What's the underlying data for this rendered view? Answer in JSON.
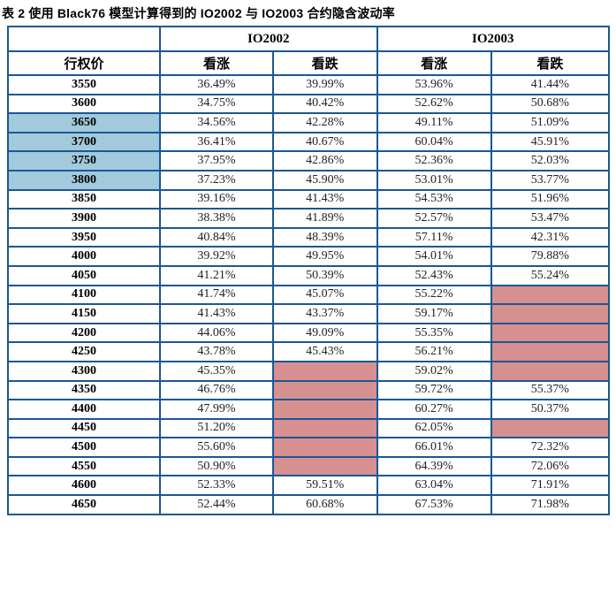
{
  "title": "表 2 使用 Black76 模型计算得到的 IO2002 与 IO2003 合约隐含波动率",
  "colors": {
    "border": "#1a5794",
    "blue_highlight": "#a2cadc",
    "pink_highlight": "#d69090"
  },
  "table": {
    "group_headers": {
      "blank": "",
      "io2002": "IO2002",
      "io2003": "IO2003"
    },
    "column_headers": {
      "strike": "行权价",
      "call02": "看涨",
      "put02": "看跌",
      "call03": "看涨",
      "put03": "看跌"
    },
    "rows": [
      {
        "strike": "3550",
        "strike_highlight": false,
        "values": [
          "36.49%",
          "39.99%",
          "53.96%",
          "41.44%"
        ]
      },
      {
        "strike": "3600",
        "strike_highlight": false,
        "values": [
          "34.75%",
          "40.42%",
          "52.62%",
          "50.68%"
        ]
      },
      {
        "strike": "3650",
        "strike_highlight": true,
        "values": [
          "34.56%",
          "42.28%",
          "49.11%",
          "51.09%"
        ]
      },
      {
        "strike": "3700",
        "strike_highlight": true,
        "values": [
          "36.41%",
          "40.67%",
          "60.04%",
          "45.91%"
        ]
      },
      {
        "strike": "3750",
        "strike_highlight": true,
        "values": [
          "37.95%",
          "42.86%",
          "52.36%",
          "52.03%"
        ]
      },
      {
        "strike": "3800",
        "strike_highlight": true,
        "values": [
          "37.23%",
          "45.90%",
          "53.01%",
          "53.77%"
        ]
      },
      {
        "strike": "3850",
        "strike_highlight": false,
        "values": [
          "39.16%",
          "41.43%",
          "54.53%",
          "51.96%"
        ]
      },
      {
        "strike": "3900",
        "strike_highlight": false,
        "values": [
          "38.38%",
          "41.89%",
          "52.57%",
          "53.47%"
        ]
      },
      {
        "strike": "3950",
        "strike_highlight": false,
        "values": [
          "40.84%",
          "48.39%",
          "57.11%",
          "42.31%"
        ]
      },
      {
        "strike": "4000",
        "strike_highlight": false,
        "values": [
          "39.92%",
          "49.95%",
          "54.01%",
          "79.88%"
        ]
      },
      {
        "strike": "4050",
        "strike_highlight": false,
        "values": [
          "41.21%",
          "50.39%",
          "52.43%",
          "55.24%"
        ]
      },
      {
        "strike": "4100",
        "strike_highlight": false,
        "values": [
          "41.74%",
          "45.07%",
          "55.22%",
          null
        ]
      },
      {
        "strike": "4150",
        "strike_highlight": false,
        "values": [
          "41.43%",
          "43.37%",
          "59.17%",
          null
        ]
      },
      {
        "strike": "4200",
        "strike_highlight": false,
        "values": [
          "44.06%",
          "49.09%",
          "55.35%",
          null
        ]
      },
      {
        "strike": "4250",
        "strike_highlight": false,
        "values": [
          "43.78%",
          "45.43%",
          "56.21%",
          null
        ]
      },
      {
        "strike": "4300",
        "strike_highlight": false,
        "values": [
          "45.35%",
          null,
          "59.02%",
          null
        ]
      },
      {
        "strike": "4350",
        "strike_highlight": false,
        "values": [
          "46.76%",
          null,
          "59.72%",
          "55.37%"
        ]
      },
      {
        "strike": "4400",
        "strike_highlight": false,
        "values": [
          "47.99%",
          null,
          "60.27%",
          "50.37%"
        ]
      },
      {
        "strike": "4450",
        "strike_highlight": false,
        "values": [
          "51.20%",
          null,
          "62.05%",
          null
        ]
      },
      {
        "strike": "4500",
        "strike_highlight": false,
        "values": [
          "55.60%",
          null,
          "66.01%",
          "72.32%"
        ]
      },
      {
        "strike": "4550",
        "strike_highlight": false,
        "values": [
          "50.90%",
          null,
          "64.39%",
          "72.06%"
        ]
      },
      {
        "strike": "4600",
        "strike_highlight": false,
        "values": [
          "52.33%",
          "59.51%",
          "63.04%",
          "71.91%"
        ]
      },
      {
        "strike": "4650",
        "strike_highlight": false,
        "values": [
          "52.44%",
          "60.68%",
          "67.53%",
          "71.98%"
        ]
      }
    ]
  }
}
